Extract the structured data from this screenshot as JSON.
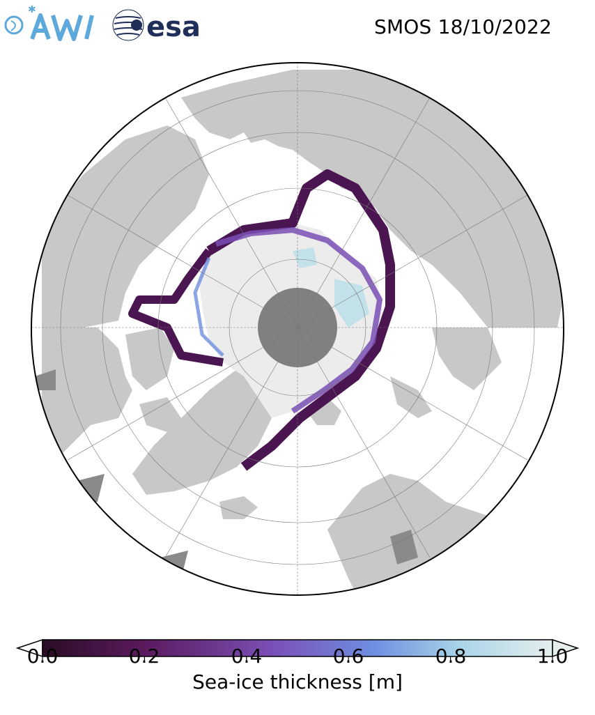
{
  "header": {
    "awi_logo_text": "AWI",
    "esa_logo_text": "esa",
    "title": "SMOS 18/10/2022"
  },
  "map": {
    "projection": "north-polar-stereographic",
    "center": "North Pole",
    "pole_hole": true,
    "layers": [
      "land",
      "open-water",
      "sea-ice-thickness",
      "graticule"
    ]
  },
  "colorbar": {
    "label": "Sea-ice thickness [m]",
    "min": 0.0,
    "max": 1.0,
    "extend": "both",
    "ticks": [
      "0.0",
      "0.2",
      "0.4",
      "0.6",
      "0.8",
      "1.0"
    ],
    "stops": [
      "#2a0c25",
      "#5b1a5e",
      "#7a4fb5",
      "#6e8fe0",
      "#a9d5e8",
      "#e6eeee"
    ]
  },
  "colors": {
    "land": "#c8c8c8",
    "land_dark": "#8a8a8a",
    "pole_hole": "#808080",
    "thick_ice": "#ececec",
    "ocean": "#ffffff"
  }
}
